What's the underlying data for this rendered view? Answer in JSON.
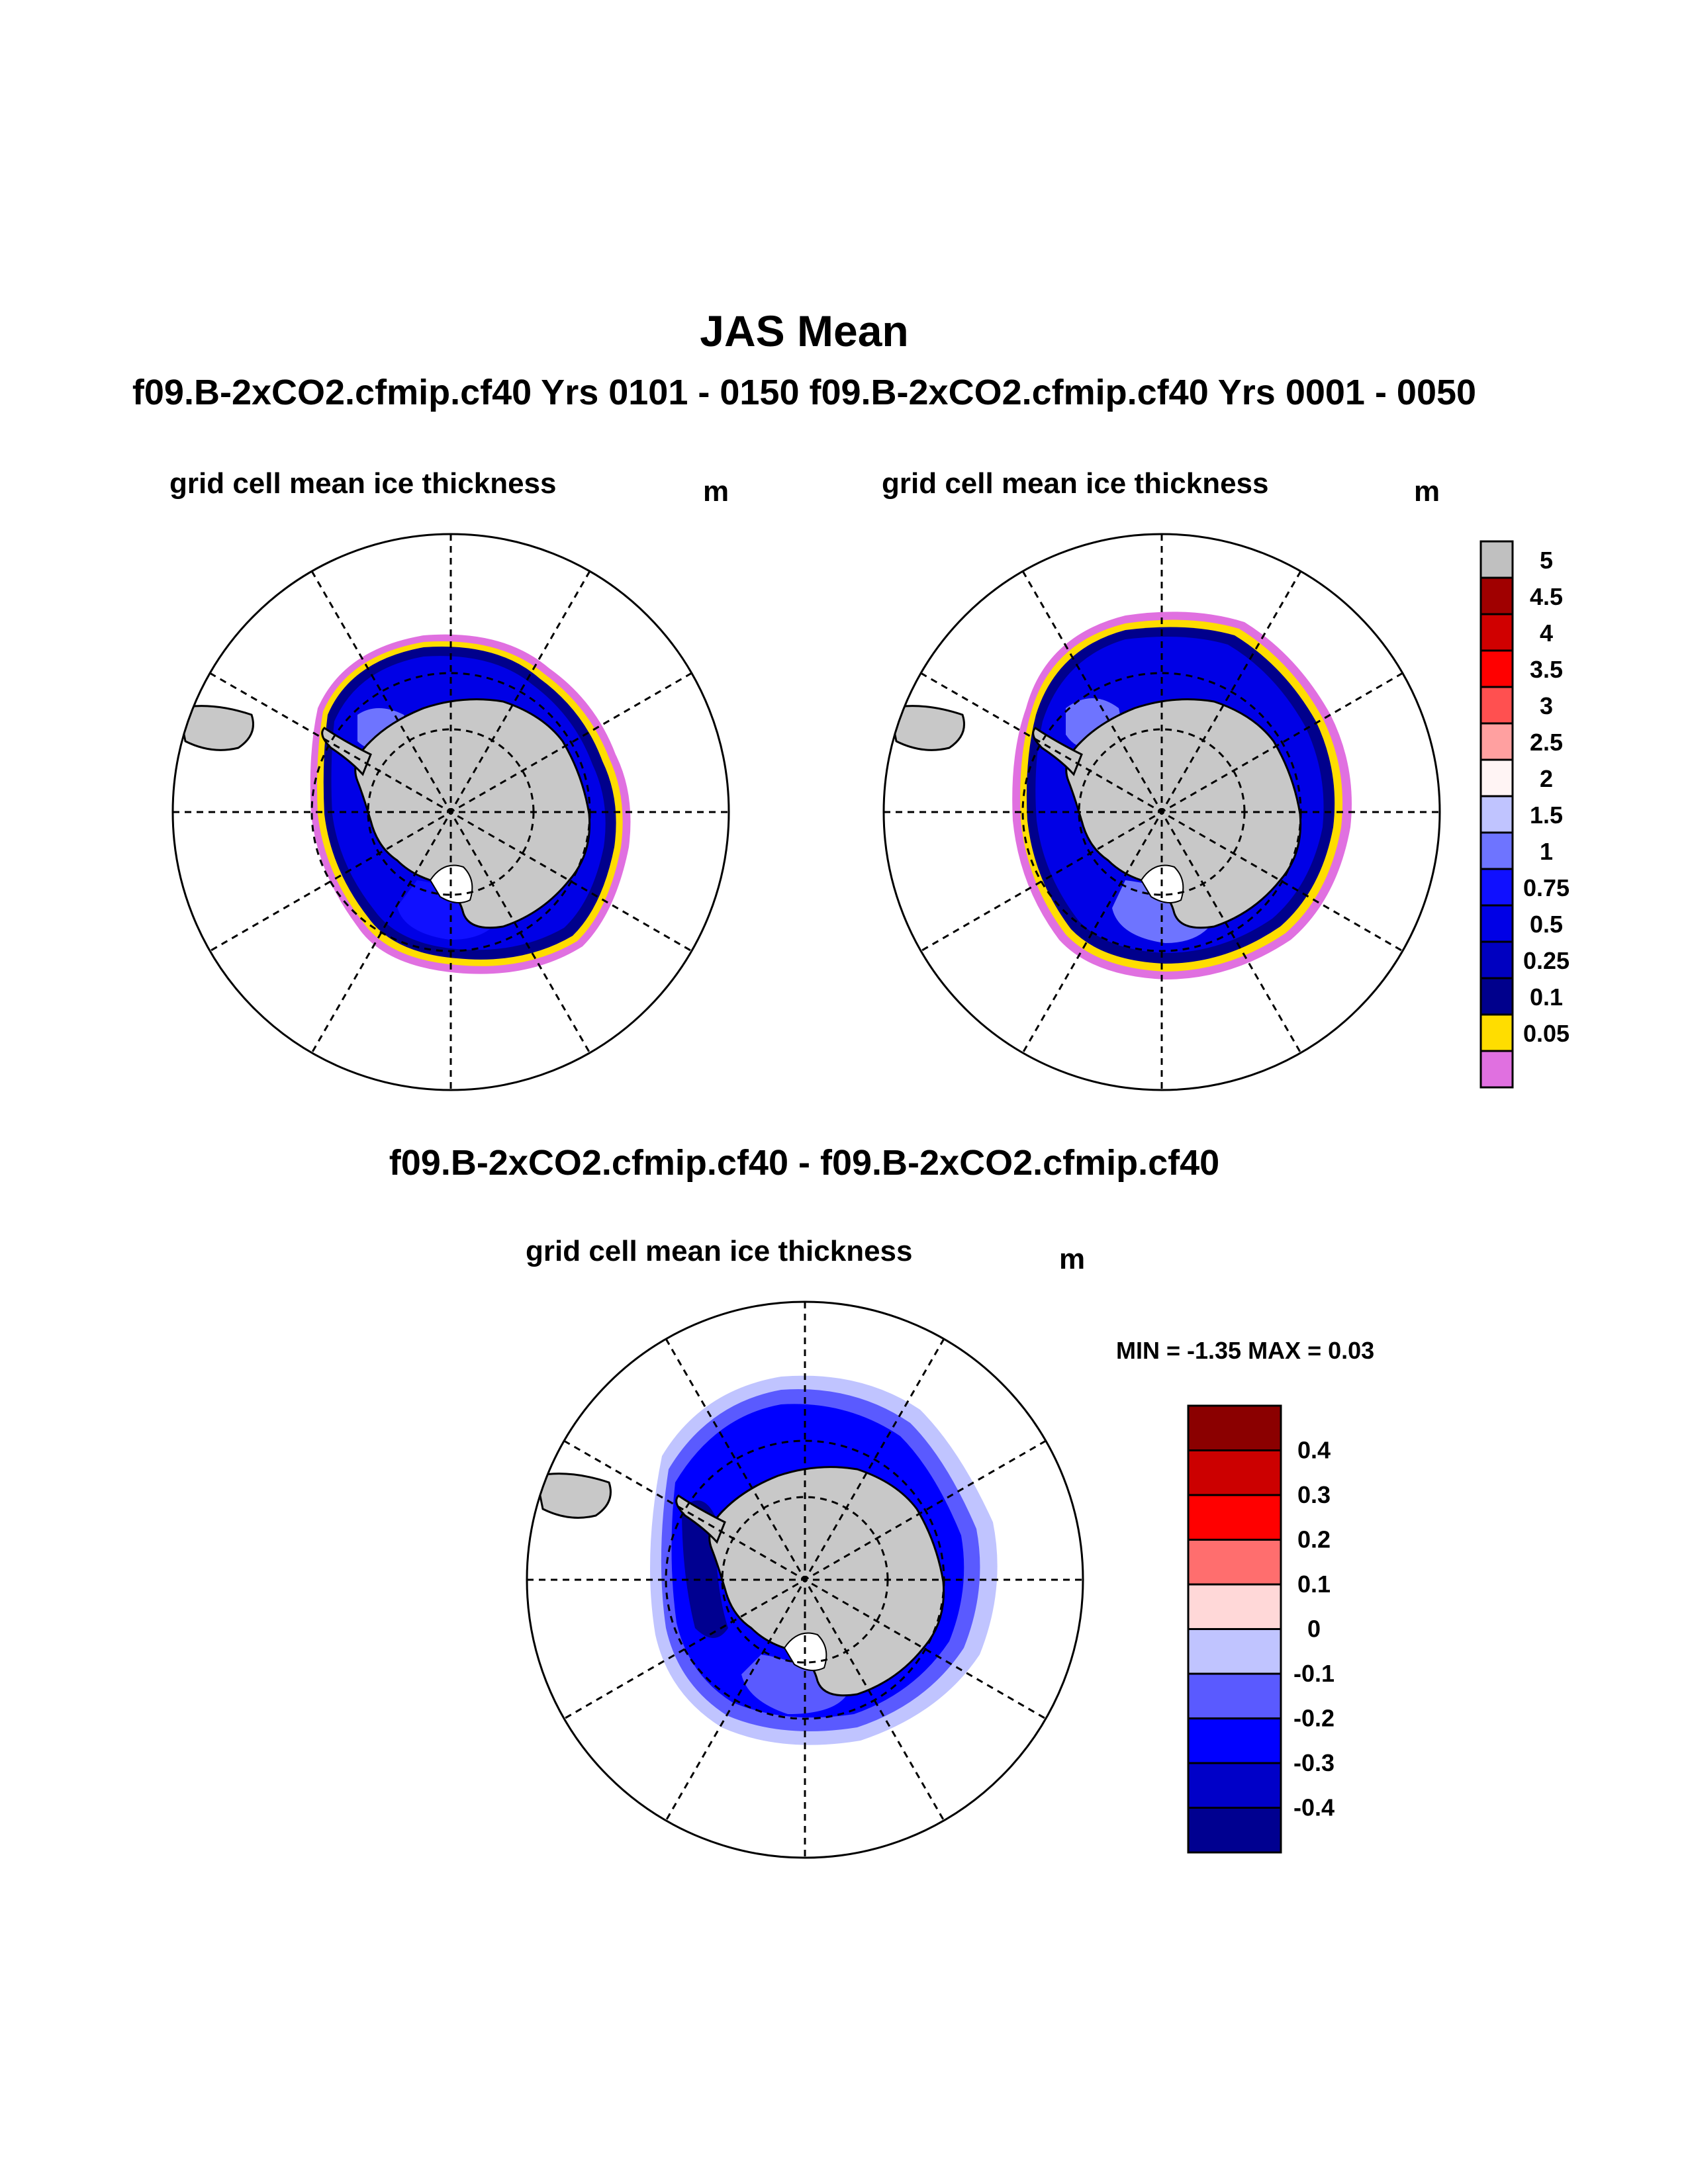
{
  "main_title": "JAS Mean",
  "runs_header": "f09.B-2xCO2.cfmip.cf40  Yrs 0101 - 0150 f09.B-2xCO2.cfmip.cf40  Yrs 0001 - 0050",
  "diff_header": "f09.B-2xCO2.cfmip.cf40 - f09.B-2xCO2.cfmip.cf40",
  "panel_left": {
    "title": "grid cell mean ice thickness",
    "units": "m"
  },
  "panel_right": {
    "title": "grid cell mean ice thickness",
    "units": "m"
  },
  "panel_diff": {
    "title": "grid cell mean ice thickness",
    "units": "m",
    "minmax": "MIN =  -1.35 MAX =   0.03"
  },
  "colorbar_thickness": {
    "labels": [
      "5",
      "4.5",
      "4",
      "3.5",
      "3",
      "2.5",
      "2",
      "1.5",
      "1",
      "0.75",
      "0.5",
      "0.25",
      "0.1",
      "0.05"
    ],
    "colors": [
      "#c0c0c0",
      "#a00000",
      "#d00000",
      "#ff0000",
      "#ff5050",
      "#ffa0a0",
      "#fff4f4",
      "#c0c4ff",
      "#6e74ff",
      "#1010ff",
      "#0000e6",
      "#0000c0",
      "#00008c",
      "#ffdd00",
      "#e070e0"
    ]
  },
  "colorbar_diff": {
    "labels": [
      "0.4",
      "0.3",
      "0.2",
      "0.1",
      "0",
      "-0.1",
      "-0.2",
      "-0.3",
      "-0.4"
    ],
    "colors": [
      "#8b0000",
      "#cc0000",
      "#ff0000",
      "#ff6e6e",
      "#ffd8d8",
      "#c0c4ff",
      "#5a5aff",
      "#0000ff",
      "#0000c8",
      "#000090"
    ]
  },
  "land_color": "#c8c8c8",
  "ice_color": "#2020e0"
}
